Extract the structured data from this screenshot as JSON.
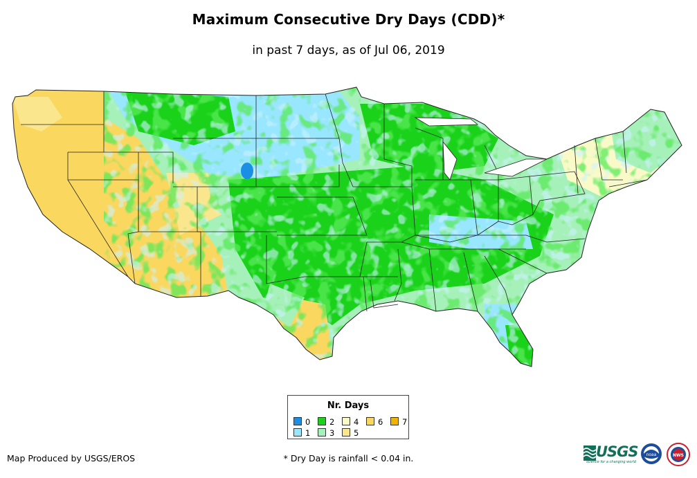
{
  "title": "Maximum Consecutive Dry Days (CDD)*",
  "subtitle": "in past 7 days, as of Jul 06, 2019",
  "legend": {
    "title": "Nr. Days",
    "items": [
      {
        "label": "0",
        "color": "#1a8fe3"
      },
      {
        "label": "1",
        "color": "#98e6ff"
      },
      {
        "label": "2",
        "color": "#19d219"
      },
      {
        "label": "3",
        "color": "#a6f0b9"
      },
      {
        "label": "4",
        "color": "#fafac8"
      },
      {
        "label": "5",
        "color": "#fae68c"
      },
      {
        "label": "6",
        "color": "#fad75f"
      },
      {
        "label": "7",
        "color": "#f0b400"
      }
    ]
  },
  "credit": "Map Produced by USGS/EROS",
  "footnote": "* Dry Day is rainfall < 0.04 in.",
  "logos": {
    "usgs": "USGS",
    "usgs_tagline": "science for a changing world",
    "noaa": "noaa",
    "nws": "NWS"
  },
  "map_icon": "conus-dry-days-map"
}
